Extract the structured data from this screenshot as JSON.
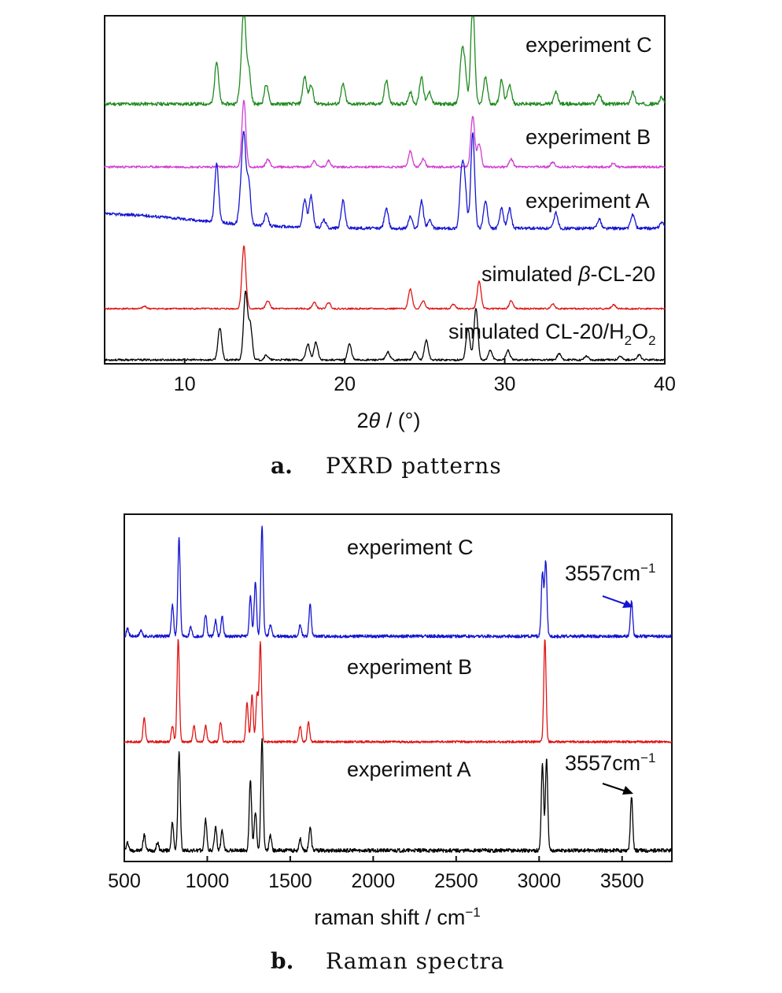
{
  "panel_a": {
    "caption_letter": "a.",
    "caption_text": "PXRD patterns",
    "x_label": "2θ / (°)",
    "x_label_prefix": "2",
    "x_label_theta": "θ",
    "x_label_suffix": " / (°)",
    "x_ticks": [
      "10",
      "20",
      "30",
      "40"
    ],
    "trace_labels": {
      "expC": "experiment C",
      "expB": "experiment B",
      "expA": "experiment A",
      "simBeta_prefix": "simulated ",
      "simBeta_beta": "β",
      "simBeta_suffix": "-CL-20",
      "simH2O2_prefix": "simulated CL-20/H",
      "simH2O2_sub1": "2",
      "simH2O2_mid": "O",
      "simH2O2_sub2": "2"
    }
  },
  "panel_b": {
    "caption_letter": "b.",
    "caption_text": "Raman spectra",
    "x_label_prefix": "raman shift / cm",
    "x_label_sup": "−1",
    "x_ticks": [
      "500",
      "1000",
      "1500",
      "2000",
      "2500",
      "3000",
      "3500"
    ],
    "trace_labels": {
      "expC": "experiment C",
      "expB": "experiment B",
      "expA": "experiment A"
    },
    "annotations": {
      "c_value": "3557cm",
      "c_sup": "−1",
      "a_value": "3557cm",
      "a_sup": "−1"
    }
  },
  "colors": {
    "green": "#1e8a1e",
    "magenta": "#d23cd2",
    "blue": "#1414d2",
    "red": "#e01414",
    "black": "#000000"
  },
  "chart_data": [
    {
      "type": "line",
      "title": "PXRD patterns",
      "xlabel": "2θ / (°)",
      "ylabel": "",
      "xlim": [
        5,
        40
      ],
      "x_ticks": [
        10,
        20,
        30,
        40
      ],
      "series": [
        {
          "name": "experiment C",
          "color": "#1e8a1e",
          "peaks": [
            [
              12.0,
              55
            ],
            [
              13.5,
              20
            ],
            [
              13.7,
              120
            ],
            [
              14.0,
              45
            ],
            [
              15.1,
              25
            ],
            [
              17.5,
              35
            ],
            [
              17.9,
              25
            ],
            [
              19.9,
              25
            ],
            [
              22.6,
              30
            ],
            [
              24.1,
              15
            ],
            [
              24.8,
              35
            ],
            [
              25.3,
              15
            ],
            [
              27.3,
              55
            ],
            [
              27.5,
              45
            ],
            [
              28.0,
              130
            ],
            [
              28.8,
              35
            ],
            [
              29.8,
              30
            ],
            [
              30.3,
              25
            ],
            [
              33.2,
              15
            ],
            [
              35.9,
              12
            ],
            [
              38.0,
              15
            ],
            [
              39.8,
              8
            ]
          ]
        },
        {
          "name": "experiment B",
          "color": "#d23cd2",
          "peaks": [
            [
              13.7,
              85
            ],
            [
              15.2,
              10
            ],
            [
              18.1,
              8
            ],
            [
              19.0,
              8
            ],
            [
              24.1,
              20
            ],
            [
              24.9,
              10
            ],
            [
              28.0,
              65
            ],
            [
              28.4,
              30
            ],
            [
              30.4,
              10
            ],
            [
              33.0,
              6
            ],
            [
              36.8,
              5
            ]
          ]
        },
        {
          "name": "experiment A",
          "color": "#1414d2",
          "peaks": [
            [
              12.0,
              75
            ],
            [
              13.5,
              30
            ],
            [
              13.7,
              110
            ],
            [
              14.0,
              55
            ],
            [
              15.1,
              15
            ],
            [
              17.5,
              35
            ],
            [
              17.9,
              40
            ],
            [
              18.7,
              10
            ],
            [
              19.9,
              35
            ],
            [
              22.6,
              25
            ],
            [
              24.1,
              15
            ],
            [
              24.8,
              35
            ],
            [
              25.3,
              10
            ],
            [
              27.3,
              65
            ],
            [
              27.5,
              55
            ],
            [
              28.0,
              120
            ],
            [
              28.8,
              35
            ],
            [
              29.8,
              25
            ],
            [
              30.3,
              25
            ],
            [
              33.2,
              20
            ],
            [
              35.9,
              12
            ],
            [
              38.0,
              18
            ],
            [
              39.8,
              8
            ]
          ]
        },
        {
          "name": "simulated β-CL-20",
          "color": "#e01414",
          "peaks": [
            [
              7.5,
              3
            ],
            [
              13.7,
              80
            ],
            [
              15.2,
              10
            ],
            [
              18.1,
              8
            ],
            [
              19.0,
              8
            ],
            [
              24.1,
              25
            ],
            [
              24.9,
              10
            ],
            [
              26.8,
              6
            ],
            [
              28.4,
              35
            ],
            [
              30.4,
              10
            ],
            [
              33.0,
              6
            ],
            [
              36.8,
              5
            ]
          ]
        },
        {
          "name": "simulated CL-20/H2O2",
          "color": "#000000",
          "peaks": [
            [
              12.2,
              40
            ],
            [
              13.8,
              85
            ],
            [
              14.1,
              45
            ],
            [
              15.1,
              6
            ],
            [
              17.7,
              20
            ],
            [
              18.2,
              22
            ],
            [
              20.3,
              20
            ],
            [
              22.7,
              10
            ],
            [
              24.4,
              10
            ],
            [
              25.1,
              25
            ],
            [
              27.7,
              40
            ],
            [
              28.2,
              65
            ],
            [
              29.1,
              12
            ],
            [
              30.2,
              12
            ],
            [
              33.4,
              8
            ],
            [
              35.1,
              5
            ],
            [
              37.2,
              5
            ],
            [
              38.4,
              6
            ]
          ]
        }
      ]
    },
    {
      "type": "line",
      "title": "Raman spectra",
      "xlabel": "raman shift / cm−1",
      "ylabel": "",
      "xlim": [
        500,
        3800
      ],
      "x_ticks": [
        500,
        1000,
        1500,
        2000,
        2500,
        3000,
        3500
      ],
      "series": [
        {
          "name": "experiment C",
          "color": "#1414d2",
          "peaks": [
            [
              520,
              10
            ],
            [
              600,
              8
            ],
            [
              790,
              40
            ],
            [
              830,
              125
            ],
            [
              900,
              12
            ],
            [
              990,
              28
            ],
            [
              1050,
              20
            ],
            [
              1090,
              25
            ],
            [
              1260,
              50
            ],
            [
              1290,
              70
            ],
            [
              1330,
              140
            ],
            [
              1380,
              15
            ],
            [
              1560,
              15
            ],
            [
              1620,
              40
            ],
            [
              3020,
              80
            ],
            [
              3040,
              95
            ],
            [
              3557,
              45
            ]
          ]
        },
        {
          "name": "experiment B",
          "color": "#e01414",
          "peaks": [
            [
              620,
              30
            ],
            [
              790,
              20
            ],
            [
              825,
              130
            ],
            [
              920,
              20
            ],
            [
              990,
              20
            ],
            [
              1080,
              25
            ],
            [
              1240,
              50
            ],
            [
              1270,
              60
            ],
            [
              1300,
              60
            ],
            [
              1320,
              125
            ],
            [
              1560,
              20
            ],
            [
              1610,
              25
            ],
            [
              3035,
              130
            ]
          ]
        },
        {
          "name": "experiment A",
          "color": "#000000",
          "peaks": [
            [
              520,
              10
            ],
            [
              620,
              20
            ],
            [
              700,
              10
            ],
            [
              790,
              35
            ],
            [
              830,
              125
            ],
            [
              990,
              40
            ],
            [
              1050,
              30
            ],
            [
              1090,
              25
            ],
            [
              1260,
              90
            ],
            [
              1290,
              50
            ],
            [
              1330,
              140
            ],
            [
              1380,
              20
            ],
            [
              1560,
              15
            ],
            [
              1620,
              30
            ],
            [
              3020,
              110
            ],
            [
              3045,
              115
            ],
            [
              3557,
              70
            ]
          ]
        }
      ]
    }
  ]
}
